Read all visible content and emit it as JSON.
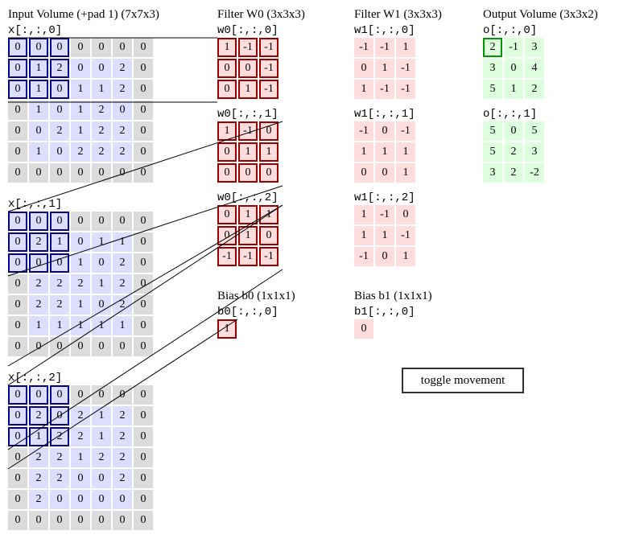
{
  "colors": {
    "input_bg": "#dddddd",
    "input_pad_bg": "#dcdcdc",
    "input_window_bg": "#ddddff",
    "input_border": "#000088",
    "filter_bg": "#ffdddd",
    "filter_border": "#990000",
    "output_bg": "#ddffdd",
    "output_border": "#009900",
    "connector_line": "#000000"
  },
  "input": {
    "title": "Input Volume (+pad 1) (7x7x3)",
    "slices": [
      {
        "label": "x[:,:,0]",
        "grid": [
          [
            "0",
            "0",
            "0",
            "0",
            "0",
            "0",
            "0"
          ],
          [
            "0",
            "1",
            "2",
            "0",
            "0",
            "2",
            "0"
          ],
          [
            "0",
            "1",
            "0",
            "1",
            "1",
            "2",
            "0"
          ],
          [
            "0",
            "1",
            "0",
            "1",
            "2",
            "0",
            "0"
          ],
          [
            "0",
            "0",
            "2",
            "1",
            "2",
            "2",
            "0"
          ],
          [
            "0",
            "1",
            "0",
            "2",
            "2",
            "2",
            "0"
          ],
          [
            "0",
            "0",
            "0",
            "0",
            "0",
            "0",
            "0"
          ]
        ]
      },
      {
        "label": "x[:,:,1]",
        "grid": [
          [
            "0",
            "0",
            "0",
            "0",
            "0",
            "0",
            "0"
          ],
          [
            "0",
            "2",
            "1",
            "0",
            "1",
            "1",
            "0"
          ],
          [
            "0",
            "0",
            "0",
            "1",
            "0",
            "2",
            "0"
          ],
          [
            "0",
            "2",
            "2",
            "2",
            "1",
            "2",
            "0"
          ],
          [
            "0",
            "2",
            "2",
            "1",
            "0",
            "2",
            "0"
          ],
          [
            "0",
            "1",
            "1",
            "1",
            "1",
            "1",
            "0"
          ],
          [
            "0",
            "0",
            "0",
            "0",
            "0",
            "0",
            "0"
          ]
        ]
      },
      {
        "label": "x[:,:,2]",
        "grid": [
          [
            "0",
            "0",
            "0",
            "0",
            "0",
            "0",
            "0"
          ],
          [
            "0",
            "2",
            "0",
            "2",
            "1",
            "2",
            "0"
          ],
          [
            "0",
            "1",
            "2",
            "2",
            "1",
            "2",
            "0"
          ],
          [
            "0",
            "2",
            "2",
            "1",
            "2",
            "2",
            "0"
          ],
          [
            "0",
            "2",
            "2",
            "0",
            "0",
            "2",
            "0"
          ],
          [
            "0",
            "2",
            "0",
            "0",
            "0",
            "0",
            "0"
          ],
          [
            "0",
            "0",
            "0",
            "0",
            "0",
            "0",
            "0"
          ]
        ]
      }
    ]
  },
  "filter_w0": {
    "title": "Filter W0 (3x3x3)",
    "slices": [
      {
        "label": "w0[:,:,0]",
        "grid": [
          [
            "1",
            "-1",
            "-1"
          ],
          [
            "0",
            "0",
            "-1"
          ],
          [
            "0",
            "1",
            "-1"
          ]
        ]
      },
      {
        "label": "w0[:,:,1]",
        "grid": [
          [
            "1",
            "-1",
            "0"
          ],
          [
            "0",
            "1",
            "1"
          ],
          [
            "0",
            "0",
            "0"
          ]
        ]
      },
      {
        "label": "w0[:,:,2]",
        "grid": [
          [
            "0",
            "1",
            "1"
          ],
          [
            "0",
            "1",
            "0"
          ],
          [
            "-1",
            "-1",
            "-1"
          ]
        ]
      }
    ],
    "bias_title": "Bias b0 (1x1x1)",
    "bias_label": "b0[:,:,0]",
    "bias_value": "1"
  },
  "filter_w1": {
    "title": "Filter W1 (3x3x3)",
    "slices": [
      {
        "label": "w1[:,:,0]",
        "grid": [
          [
            "-1",
            "-1",
            "1"
          ],
          [
            "0",
            "1",
            "-1"
          ],
          [
            "1",
            "-1",
            "-1"
          ]
        ]
      },
      {
        "label": "w1[:,:,1]",
        "grid": [
          [
            "-1",
            "0",
            "-1"
          ],
          [
            "1",
            "1",
            "1"
          ],
          [
            "0",
            "0",
            "1"
          ]
        ]
      },
      {
        "label": "w1[:,:,2]",
        "grid": [
          [
            "1",
            "-1",
            "0"
          ],
          [
            "1",
            "1",
            "-1"
          ],
          [
            "-1",
            "0",
            "1"
          ]
        ]
      }
    ],
    "bias_title": "Bias b1 (1x1x1)",
    "bias_label": "b1[:,:,0]",
    "bias_value": "0"
  },
  "output": {
    "title": "Output Volume (3x3x2)",
    "slices": [
      {
        "label": "o[:,:,0]",
        "grid": [
          [
            "2",
            "-1",
            "3"
          ],
          [
            "3",
            "0",
            "4"
          ],
          [
            "5",
            "1",
            "2"
          ]
        ]
      },
      {
        "label": "o[:,:,1]",
        "grid": [
          [
            "5",
            "0",
            "5"
          ],
          [
            "5",
            "2",
            "3"
          ],
          [
            "3",
            "2",
            "-2"
          ]
        ]
      }
    ]
  },
  "controls": {
    "toggle_label": "toggle movement"
  }
}
